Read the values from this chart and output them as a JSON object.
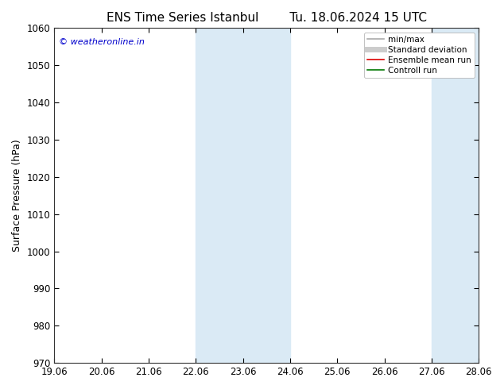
{
  "title_left": "ENS Time Series Istanbul",
  "title_right": "Tu. 18.06.2024 15 UTC",
  "ylabel": "Surface Pressure (hPa)",
  "ylim": [
    970,
    1060
  ],
  "yticks": [
    970,
    980,
    990,
    1000,
    1010,
    1020,
    1030,
    1040,
    1050,
    1060
  ],
  "xlabels": [
    "19.06",
    "20.06",
    "21.06",
    "22.06",
    "23.06",
    "24.06",
    "25.06",
    "26.06",
    "27.06",
    "28.06"
  ],
  "x_values": [
    0,
    1,
    2,
    3,
    4,
    5,
    6,
    7,
    8,
    9
  ],
  "shaded_bands": [
    {
      "xmin": 3.0,
      "xmax": 4.0,
      "color": "#daeaf5"
    },
    {
      "xmin": 4.0,
      "xmax": 5.0,
      "color": "#daeaf5"
    },
    {
      "xmin": 8.0,
      "xmax": 9.0,
      "color": "#daeaf5"
    }
  ],
  "watermark": "© weatheronline.in",
  "watermark_color": "#0000cc",
  "legend_items": [
    {
      "label": "min/max",
      "color": "#aaaaaa",
      "lw": 1.2,
      "style": "solid"
    },
    {
      "label": "Standard deviation",
      "color": "#cccccc",
      "lw": 5,
      "style": "solid"
    },
    {
      "label": "Ensemble mean run",
      "color": "#dd0000",
      "lw": 1.2,
      "style": "solid"
    },
    {
      "label": "Controll run",
      "color": "#007700",
      "lw": 1.2,
      "style": "solid"
    }
  ],
  "bg_color": "#ffffff",
  "plot_bg_color": "#ffffff",
  "tick_label_fontsize": 8.5,
  "axis_label_fontsize": 9,
  "title_fontsize": 11
}
